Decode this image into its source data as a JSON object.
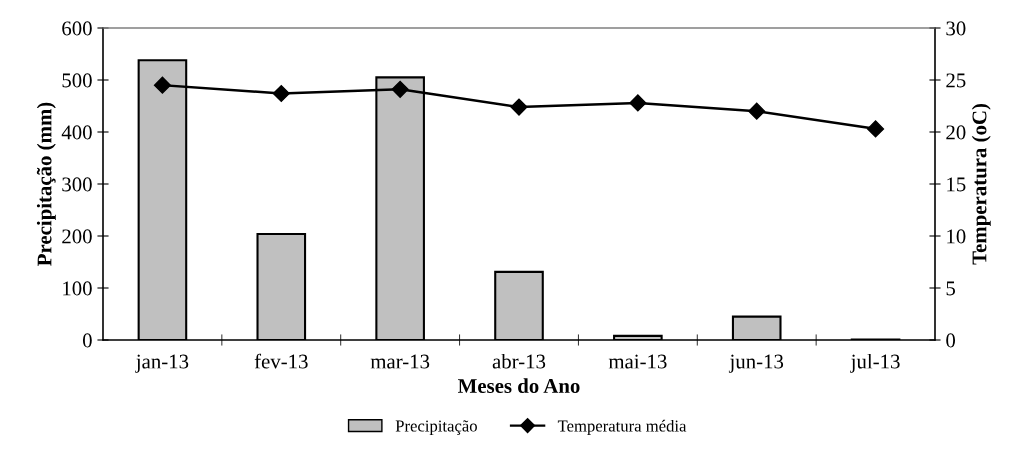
{
  "chart_data": {
    "type": "bar",
    "xlabel": "Meses do Ano",
    "ylabel": "Precipitação (mm)",
    "y2label": "Temperatura (oC)",
    "categories": [
      "jan-13",
      "fev-13",
      "mar-13",
      "abr-13",
      "mai-13",
      "jun-13",
      "jul-13"
    ],
    "series": [
      {
        "name": "Precipitação",
        "color": "#c0c0c0",
        "values": [
          538,
          204,
          505,
          131,
          8,
          45,
          1
        ]
      },
      {
        "name": "Temperatura média",
        "type": "line",
        "axis": "y2",
        "color": "#000000",
        "marker": "diamond",
        "values": [
          24.5,
          23.7,
          24.1,
          22.4,
          22.8,
          22.0,
          20.3
        ]
      }
    ],
    "ylim": [
      0,
      600
    ],
    "yticks": [
      0,
      100,
      200,
      300,
      400,
      500,
      600
    ],
    "y2lim": [
      0,
      30
    ],
    "y2ticks": [
      0,
      5,
      10,
      15,
      20,
      25,
      30
    ],
    "legend": "bottom",
    "grid": false
  }
}
